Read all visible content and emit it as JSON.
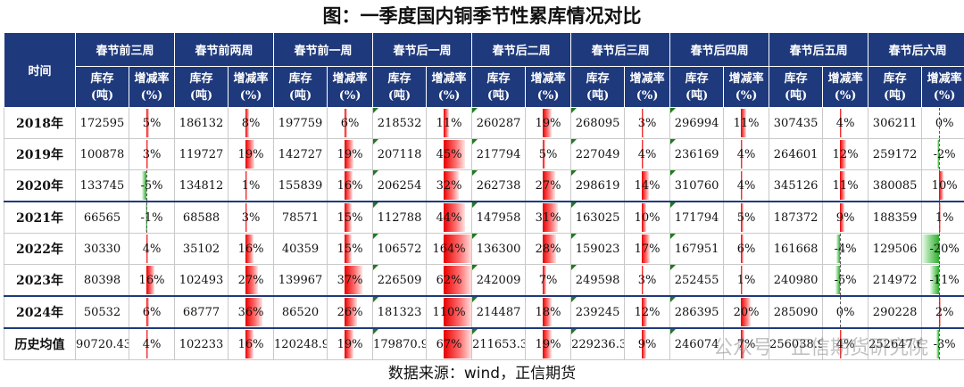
{
  "title": "图：一季度国内铜季节性累库情况对比",
  "source": "数据来源：wind，正信期货",
  "watermark": "公众号 · 正信期货研究院",
  "table": {
    "corner": "时间",
    "sub_inventory": "库存（吨）",
    "sub_inventory_l1": "库存",
    "sub_inventory_l2": "(吨)",
    "sub_change_l1": "增减率",
    "sub_change_l2": "(%)",
    "periods": [
      "春节前三周",
      "春节前两周",
      "春节前一周",
      "春节后一周",
      "春节后二周",
      "春节后三周",
      "春节后四周",
      "春节后五周",
      "春节后六周"
    ],
    "rows": [
      {
        "label": "2018年",
        "cells": [
          [
            "172595",
            "5%",
            5
          ],
          [
            "186132",
            "8%",
            8
          ],
          [
            "197759",
            "6%",
            6
          ],
          [
            "218532",
            "11%",
            11
          ],
          [
            "260287",
            "19%",
            19
          ],
          [
            "268095",
            "3%",
            3
          ],
          [
            "296994",
            "11%",
            11
          ],
          [
            "307435",
            "4%",
            4
          ],
          [
            "306211",
            "0%",
            0
          ]
        ]
      },
      {
        "label": "2019年",
        "cells": [
          [
            "100878",
            "3%",
            3
          ],
          [
            "119727",
            "19%",
            19
          ],
          [
            "142727",
            "19%",
            19
          ],
          [
            "207118",
            "45%",
            45
          ],
          [
            "217794",
            "5%",
            5
          ],
          [
            "227049",
            "4%",
            4
          ],
          [
            "236169",
            "4%",
            4
          ],
          [
            "264601",
            "12%",
            12
          ],
          [
            "259172",
            "-2%",
            -2
          ]
        ]
      },
      {
        "label": "2020年",
        "cells": [
          [
            "133745",
            "-5%",
            -5
          ],
          [
            "134812",
            "1%",
            1
          ],
          [
            "155839",
            "16%",
            16
          ],
          [
            "206254",
            "32%",
            32
          ],
          [
            "262738",
            "27%",
            27
          ],
          [
            "298619",
            "14%",
            14
          ],
          [
            "310760",
            "4%",
            4
          ],
          [
            "345126",
            "11%",
            11
          ],
          [
            "380085",
            "10%",
            10
          ]
        ]
      },
      {
        "label": "2021年",
        "cells": [
          [
            "66565",
            "-1%",
            -1
          ],
          [
            "68588",
            "3%",
            3
          ],
          [
            "78571",
            "15%",
            15
          ],
          [
            "112788",
            "44%",
            44
          ],
          [
            "147958",
            "31%",
            31
          ],
          [
            "163025",
            "10%",
            10
          ],
          [
            "171794",
            "5%",
            5
          ],
          [
            "187372",
            "9%",
            9
          ],
          [
            "188359",
            "1%",
            1
          ]
        ]
      },
      {
        "label": "2022年",
        "cells": [
          [
            "30330",
            "4%",
            4
          ],
          [
            "35102",
            "16%",
            16
          ],
          [
            "40359",
            "15%",
            15
          ],
          [
            "106572",
            "164%",
            164
          ],
          [
            "136300",
            "28%",
            28
          ],
          [
            "159023",
            "17%",
            17
          ],
          [
            "167951",
            "6%",
            6
          ],
          [
            "161668",
            "-4%",
            -4
          ],
          [
            "129506",
            "-20%",
            -20
          ]
        ]
      },
      {
        "label": "2023年",
        "cells": [
          [
            "80398",
            "16%",
            16
          ],
          [
            "102493",
            "27%",
            27
          ],
          [
            "139967",
            "37%",
            37
          ],
          [
            "226509",
            "62%",
            62
          ],
          [
            "242009",
            "7%",
            7
          ],
          [
            "249598",
            "3%",
            3
          ],
          [
            "252455",
            "1%",
            1
          ],
          [
            "240980",
            "-5%",
            -5
          ],
          [
            "214972",
            "-11%",
            -11
          ]
        ]
      },
      {
        "label": "2024年",
        "cells": [
          [
            "50532",
            "6%",
            6
          ],
          [
            "68777",
            "36%",
            36
          ],
          [
            "86520",
            "26%",
            26
          ],
          [
            "181323",
            "110%",
            110
          ],
          [
            "214487",
            "18%",
            18
          ],
          [
            "239245",
            "12%",
            12
          ],
          [
            "286395",
            "20%",
            20
          ],
          [
            "285090",
            "0%",
            0
          ],
          [
            "290228",
            "2%",
            2
          ]
        ]
      },
      {
        "label": "历史均值",
        "cells": [
          [
            "90720.43",
            "4%",
            4
          ],
          [
            "102233",
            "16%",
            16
          ],
          [
            "120248.9",
            "19%",
            19
          ],
          [
            "179870.9",
            "67%",
            67
          ],
          [
            "211653.3",
            "19%",
            19
          ],
          [
            "229236.3",
            "9%",
            9
          ],
          [
            "246074",
            "7%",
            7
          ],
          [
            "256038.9",
            "4%",
            4
          ],
          [
            "252647.6",
            "-3%",
            -3
          ]
        ]
      }
    ]
  }
}
